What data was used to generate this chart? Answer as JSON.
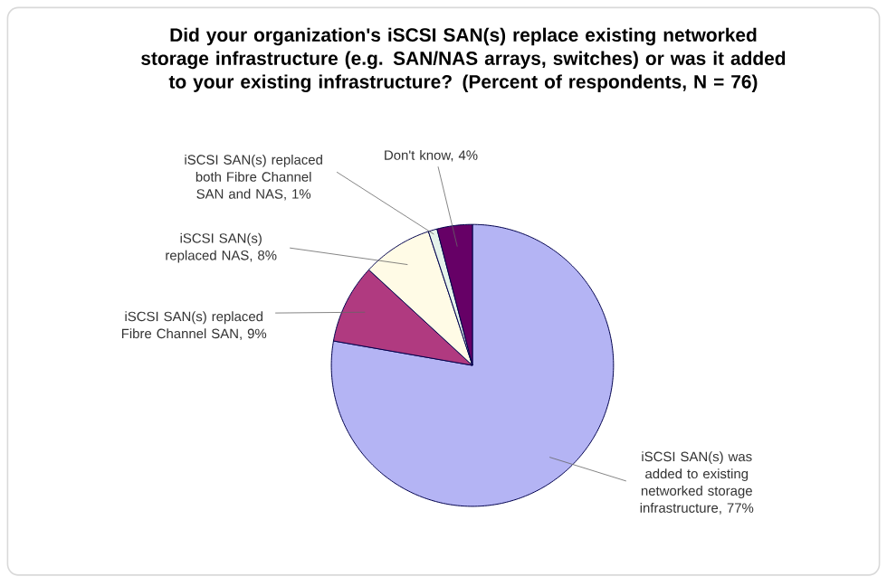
{
  "chart_data": {
    "type": "pie",
    "title": "Did your organization's iSCSI SAN(s) replace existing networked storage infrastructure (e.g. SAN/NAS arrays, switches) or was it added to your existing infrastructure? (Percent of respondents, N = 76)",
    "categories": [
      "iSCSI SAN(s) was added to existing networked storage infrastructure, 77%",
      "iSCSI SAN(s) replaced Fibre Channel SAN, 9%",
      "iSCSI SAN(s) replaced NAS, 8%",
      "iSCSI SAN(s) replaced both Fibre Channel SAN and NAS, 1%",
      "Don't know, 4%"
    ],
    "values": [
      77,
      9,
      8,
      1,
      4
    ],
    "colors": [
      "#b4b4f4",
      "#b03a80",
      "#fffbe6",
      "#e4f2ea",
      "#660066"
    ]
  }
}
